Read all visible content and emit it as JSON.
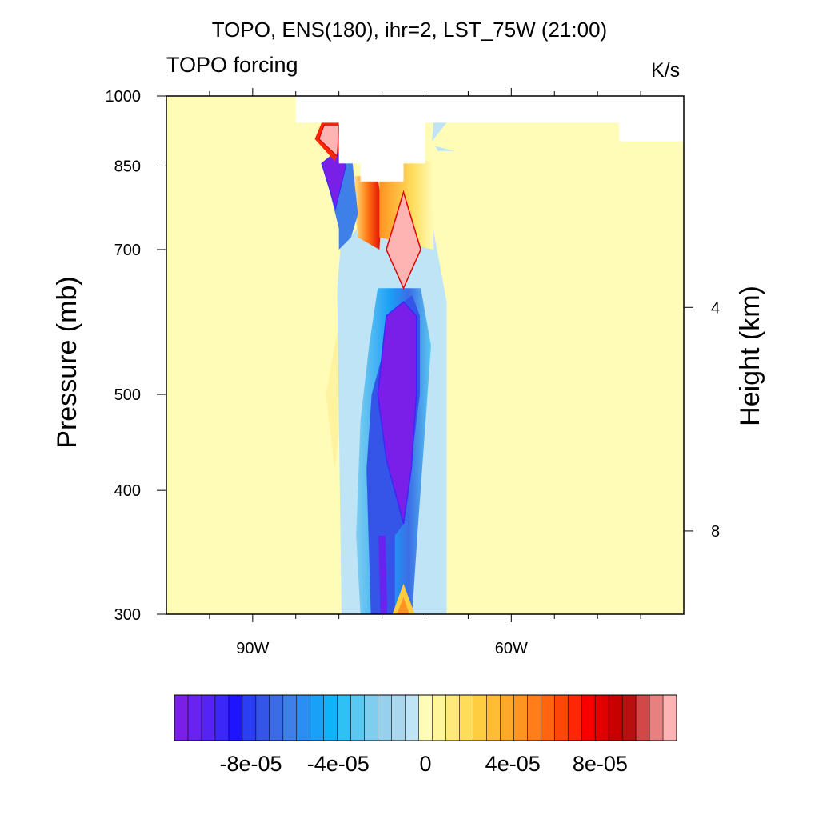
{
  "chart_data": {
    "type": "heatmap",
    "subtype": "filled-contour pressure-longitude cross section",
    "title": "TOPO, ENS(180), ihr=2, LST_75W (21:00)",
    "left_string": "TOPO forcing",
    "units": "K/s",
    "ylabel": "Pressure (mb)",
    "y2label": "Height (km)",
    "x_axis": {
      "ticks": [
        {
          "label": "90W",
          "value": -90
        },
        {
          "label": "60W",
          "value": -60
        }
      ],
      "range": [
        -100,
        -40
      ]
    },
    "y_axis": {
      "scale": "log",
      "range": [
        1000,
        300
      ],
      "ticks": [
        {
          "label": "300",
          "value": 300
        },
        {
          "label": "400",
          "value": 400
        },
        {
          "label": "500",
          "value": 500
        },
        {
          "label": "700",
          "value": 700
        },
        {
          "label": "850",
          "value": 850
        },
        {
          "label": "1000",
          "value": 1000
        }
      ]
    },
    "y2_axis": {
      "ticks": [
        {
          "label": "8",
          "value": 8,
          "pressure_mb": 364
        },
        {
          "label": "4",
          "value": 4,
          "pressure_mb": 612
        }
      ]
    },
    "colorbar": {
      "min": -0.000115,
      "max": 0.000115,
      "step": 5e-06,
      "colors": [
        "#7a1fe8",
        "#6a22ee",
        "#5624f2",
        "#3b28f8",
        "#1e14ff",
        "#2b3ef2",
        "#3555e8",
        "#3b6ce6",
        "#3f80e8",
        "#2a8ef2",
        "#1aa0f6",
        "#0fb3f8",
        "#2ec2f4",
        "#5ac8f0",
        "#7fcef0",
        "#96d0ec",
        "#aad6ee",
        "#bfe4f6",
        "#fffcb8",
        "#fff59a",
        "#ffe97a",
        "#ffdc5a",
        "#ffcd40",
        "#ffbc34",
        "#ffa82a",
        "#ff9420",
        "#ff7e18",
        "#ff6410",
        "#ff460a",
        "#ff2606",
        "#f80000",
        "#e00000",
        "#c80000",
        "#b81010",
        "#d24848",
        "#e88080",
        "#ffb4b4"
      ],
      "tick_labels": [
        {
          "label": "-8e-05",
          "value": -8e-05
        },
        {
          "label": "-4e-05",
          "value": -4e-05
        },
        {
          "label": "0",
          "value": 0
        },
        {
          "label": "4e-05",
          "value": 4e-05
        },
        {
          "label": "8e-05",
          "value": 8e-05
        }
      ]
    },
    "background_value_color": "#fffcb8",
    "missing_color": "#ffffff",
    "features": [
      {
        "name": "cooling-column",
        "lon_range": [
          -80,
          -69
        ],
        "p_range": [
          300,
          700
        ],
        "min_value": -0.00011
      },
      {
        "name": "cooling-core",
        "lon_range": [
          -76,
          -71
        ],
        "p_range": [
          370,
          620
        ],
        "value": -0.00011
      },
      {
        "name": "heating-diamond",
        "lon_range": [
          -75.5,
          -70.5
        ],
        "p_range": [
          640,
          800
        ],
        "value": 0.00011
      },
      {
        "name": "low-cooling-blob",
        "lon_range": [
          -81.5,
          -79
        ],
        "p_range": [
          770,
          870
        ],
        "value": -0.00011
      },
      {
        "name": "low-heating-blob",
        "lon_range": [
          -82.5,
          -80
        ],
        "p_range": [
          870,
          940
        ],
        "value": 0.0001
      }
    ],
    "terrain_mask": [
      {
        "lon_range": [
          -85,
          -40
        ],
        "p_range": [
          940,
          1000
        ]
      },
      {
        "lon_range": [
          -80,
          -70
        ],
        "p_range": [
          855,
          1000
        ]
      },
      {
        "lon_range": [
          -77.5,
          -72.5
        ],
        "p_range": [
          820,
          1000
        ]
      },
      {
        "lon_range": [
          -47.5,
          -40
        ],
        "p_range": [
          900,
          1000
        ]
      }
    ]
  }
}
